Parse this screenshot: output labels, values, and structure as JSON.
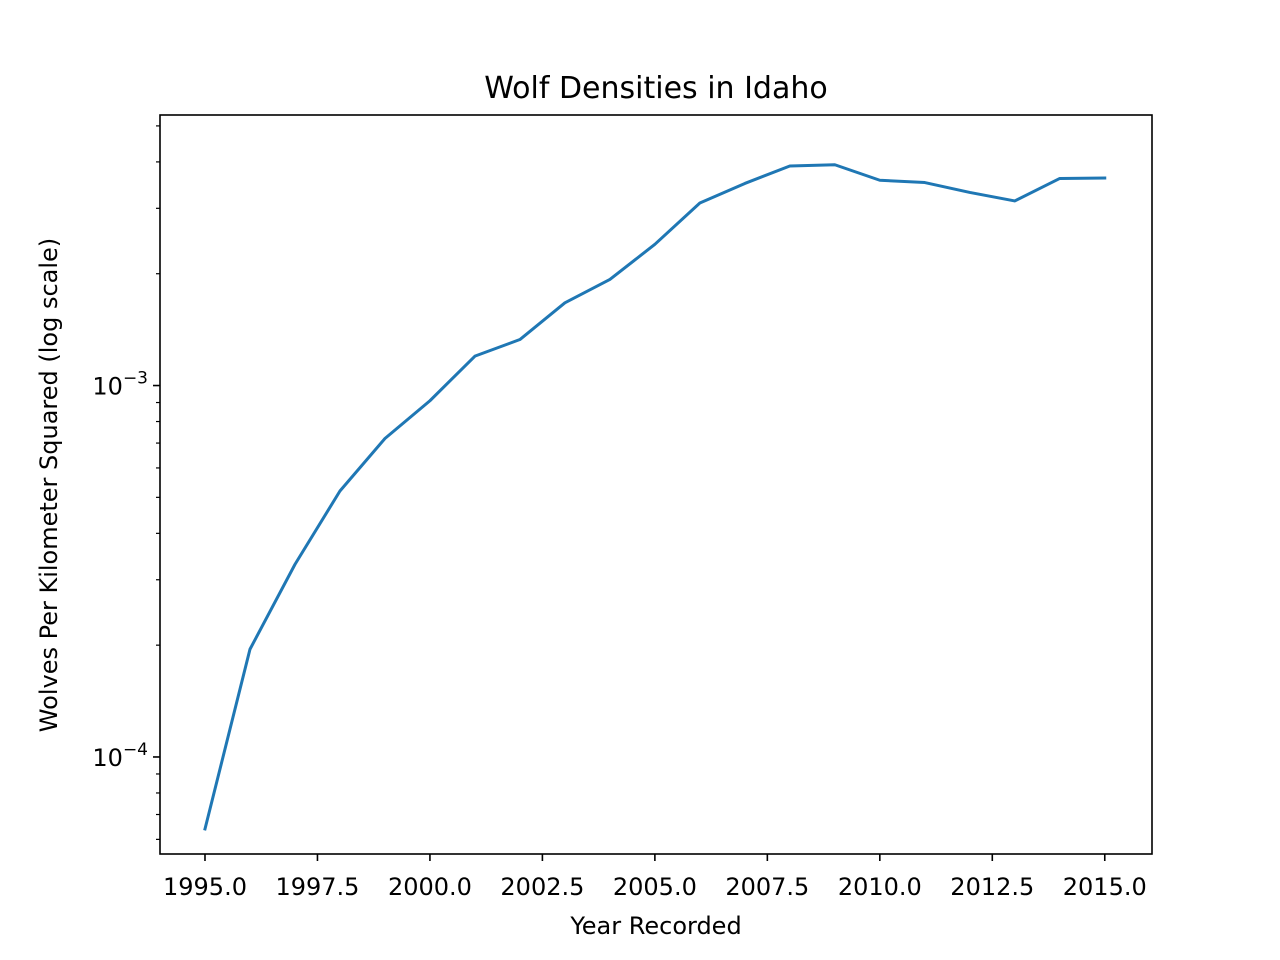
{
  "chart_data": {
    "type": "line",
    "title": "Wolf Densities in Idaho",
    "xlabel": "Year Recorded",
    "ylabel": "Wolves Per Kilometer Squared (log scale)",
    "y_scale": "log",
    "xlim": [
      1994.0,
      2016.05
    ],
    "ylim": [
      5.48e-05,
      0.00535
    ],
    "x_ticks": [
      1995.0,
      1997.5,
      2000.0,
      2002.5,
      2005.0,
      2007.5,
      2010.0,
      2012.5,
      2015.0
    ],
    "x_tick_labels": [
      "1995.0",
      "1997.5",
      "2000.0",
      "2002.5",
      "2005.0",
      "2007.5",
      "2010.0",
      "2012.5",
      "2015.0"
    ],
    "y_major_ticks": [
      {
        "value": 0.0001,
        "base": "10",
        "exponent": "−4"
      },
      {
        "value": 0.001,
        "base": "10",
        "exponent": "−3"
      }
    ],
    "grid": false,
    "legend": "none",
    "series": [
      {
        "color": "#1f77b4",
        "x": [
          1995,
          1996,
          1997,
          1998,
          1999,
          2000,
          2001,
          2002,
          2003,
          2004,
          2005,
          2006,
          2007,
          2008,
          2009,
          2010,
          2011,
          2012,
          2013,
          2014,
          2015
        ],
        "values": [
          6.4e-05,
          0.000195,
          0.00033,
          0.00052,
          0.00072,
          0.00091,
          0.0012,
          0.00133,
          0.00167,
          0.00193,
          0.0024,
          0.0031,
          0.0035,
          0.0039,
          0.00393,
          0.00357,
          0.00352,
          0.00331,
          0.00314,
          0.00361,
          0.00362
        ]
      }
    ]
  }
}
